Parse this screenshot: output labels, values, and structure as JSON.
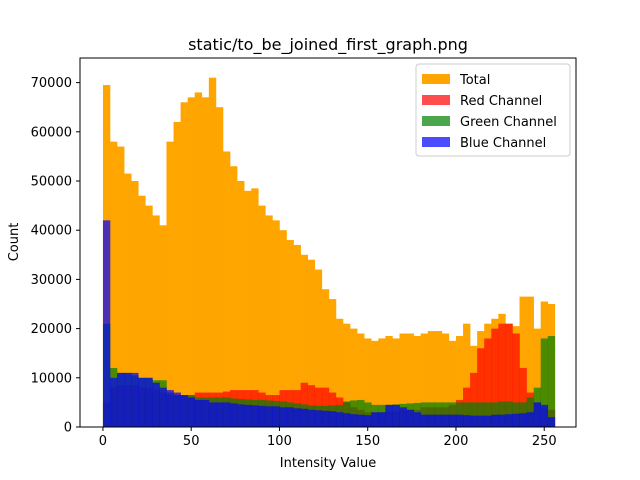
{
  "chart_data": {
    "type": "bar",
    "title": "static/to_be_joined_first_graph.png",
    "xlabel": "Intensity Value",
    "ylabel": "Count",
    "xlim": [
      -13,
      268
    ],
    "ylim": [
      0,
      75000
    ],
    "bin_width": 4,
    "xticks": [
      0,
      50,
      100,
      150,
      200,
      250
    ],
    "yticks": [
      0,
      10000,
      20000,
      30000,
      40000,
      50000,
      60000,
      70000
    ],
    "legend_position": "upper right",
    "grid": false,
    "bin_starts": [
      0,
      4,
      8,
      12,
      16,
      20,
      24,
      28,
      32,
      36,
      40,
      44,
      48,
      52,
      56,
      60,
      64,
      68,
      72,
      76,
      80,
      84,
      88,
      92,
      96,
      100,
      104,
      108,
      112,
      116,
      120,
      124,
      128,
      132,
      136,
      140,
      144,
      148,
      152,
      156,
      160,
      164,
      168,
      172,
      176,
      180,
      184,
      188,
      192,
      196,
      200,
      204,
      208,
      212,
      216,
      220,
      224,
      228,
      232,
      236,
      240,
      244,
      248,
      252
    ],
    "series": [
      {
        "name": "Total",
        "color": "#FFA500",
        "alpha": 1.0,
        "values": [
          69500,
          58000,
          57000,
          51500,
          50000,
          47000,
          45000,
          43000,
          41000,
          58000,
          62000,
          66000,
          67000,
          68000,
          67000,
          71000,
          65000,
          56000,
          53000,
          50000,
          48000,
          48500,
          45000,
          43000,
          42000,
          40000,
          38000,
          37000,
          35000,
          34000,
          32000,
          28000,
          26000,
          22000,
          21000,
          20000,
          19000,
          18000,
          17500,
          18000,
          18500,
          18000,
          19000,
          19000,
          18500,
          19000,
          19500,
          19500,
          19000,
          17500,
          18500,
          21000,
          16500,
          19500,
          21000,
          22000,
          23000,
          21000,
          20500,
          26500,
          26500,
          20000,
          25500,
          25000
        ]
      },
      {
        "name": "Red Channel",
        "color": "#FF0000",
        "alpha": 0.7,
        "values": [
          5000,
          8000,
          8500,
          8500,
          8500,
          8000,
          8000,
          7500,
          7000,
          6500,
          6500,
          6500,
          6500,
          7000,
          7000,
          7000,
          7000,
          7200,
          7500,
          7500,
          7500,
          7500,
          7000,
          6500,
          6500,
          7500,
          7500,
          7500,
          9000,
          8500,
          8000,
          8000,
          7000,
          6000,
          5000,
          4000,
          3500,
          3000,
          3000,
          3000,
          3200,
          3200,
          3500,
          3500,
          3500,
          4000,
          4000,
          4000,
          4000,
          4500,
          5500,
          8000,
          11000,
          16000,
          18000,
          20000,
          21000,
          21000,
          19000,
          12000,
          7000,
          5000,
          4000,
          3500
        ]
      },
      {
        "name": "Green Channel",
        "color": "#008000",
        "alpha": 0.7,
        "values": [
          21000,
          12000,
          11000,
          11000,
          10500,
          10000,
          10000,
          9500,
          9500,
          7000,
          6500,
          6500,
          6500,
          6000,
          6000,
          6000,
          6000,
          6000,
          5800,
          5700,
          5600,
          5500,
          5500,
          5400,
          5300,
          5200,
          5000,
          4800,
          4600,
          4400,
          4300,
          4300,
          4400,
          4500,
          5200,
          5400,
          5500,
          5000,
          4500,
          4500,
          4500,
          4600,
          4700,
          4800,
          4900,
          5000,
          5000,
          5000,
          5000,
          5000,
          5000,
          5000,
          5000,
          5000,
          5000,
          5000,
          5200,
          5200,
          5000,
          5000,
          6000,
          8000,
          18000,
          18500
        ]
      },
      {
        "name": "Blue Channel",
        "color": "#0000FF",
        "alpha": 0.7,
        "values": [
          42000,
          10000,
          11000,
          11000,
          11000,
          10000,
          10000,
          9000,
          8000,
          7500,
          7000,
          6500,
          6000,
          5500,
          5500,
          5000,
          5000,
          5000,
          4800,
          4600,
          4500,
          4400,
          4300,
          4200,
          4200,
          4000,
          4000,
          3800,
          3700,
          3500,
          3400,
          3300,
          3200,
          3000,
          2800,
          2600,
          2500,
          2400,
          3000,
          3000,
          4500,
          4500,
          4000,
          3500,
          3000,
          2500,
          2500,
          2500,
          2500,
          2500,
          2500,
          2400,
          2300,
          2300,
          2300,
          2500,
          2500,
          2600,
          2700,
          2800,
          3000,
          5000,
          4500,
          2000
        ]
      }
    ]
  }
}
